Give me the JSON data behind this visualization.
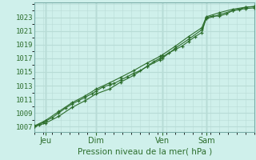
{
  "xlabel": "Pression niveau de la mer( hPa )",
  "bg_color": "#cff0eb",
  "grid_color_major": "#b8dcd6",
  "grid_color_minor": "#daeae7",
  "line_color": "#2d6e2d",
  "yticks": [
    1007,
    1009,
    1011,
    1013,
    1015,
    1017,
    1019,
    1021,
    1023
  ],
  "ylim": [
    1006.2,
    1025.2
  ],
  "xlim": [
    0,
    100
  ],
  "xtick_positions": [
    5,
    28,
    58,
    78
  ],
  "xtick_labels": [
    "Jeu",
    "Dim",
    "Ven",
    "Sam"
  ],
  "vline_positions": [
    5,
    28,
    58,
    78
  ],
  "line1": [
    [
      0,
      1007.0
    ],
    [
      2,
      1007.3
    ],
    [
      4,
      1007.6
    ],
    [
      5,
      1007.8
    ],
    [
      8,
      1008.3
    ],
    [
      11,
      1009.0
    ],
    [
      14,
      1009.7
    ],
    [
      17,
      1010.3
    ],
    [
      20,
      1010.8
    ],
    [
      23,
      1011.3
    ],
    [
      26,
      1011.8
    ],
    [
      28,
      1012.2
    ],
    [
      31,
      1012.8
    ],
    [
      34,
      1013.1
    ],
    [
      36,
      1013.3
    ],
    [
      39,
      1013.8
    ],
    [
      42,
      1014.3
    ],
    [
      45,
      1014.8
    ],
    [
      48,
      1015.2
    ],
    [
      51,
      1015.8
    ],
    [
      54,
      1016.5
    ],
    [
      57,
      1017.0
    ],
    [
      58,
      1017.2
    ],
    [
      61,
      1017.8
    ],
    [
      64,
      1018.3
    ],
    [
      67,
      1018.8
    ],
    [
      70,
      1019.5
    ],
    [
      73,
      1020.2
    ],
    [
      76,
      1020.8
    ],
    [
      78,
      1023.0
    ],
    [
      81,
      1023.2
    ],
    [
      84,
      1023.2
    ],
    [
      87,
      1023.5
    ],
    [
      90,
      1024.0
    ],
    [
      93,
      1024.2
    ],
    [
      96,
      1024.5
    ],
    [
      100,
      1024.6
    ]
  ],
  "line2": [
    [
      0,
      1007.0
    ],
    [
      5,
      1007.5
    ],
    [
      11,
      1008.5
    ],
    [
      17,
      1009.8
    ],
    [
      23,
      1010.8
    ],
    [
      28,
      1011.8
    ],
    [
      34,
      1012.5
    ],
    [
      39,
      1013.5
    ],
    [
      45,
      1014.5
    ],
    [
      51,
      1015.8
    ],
    [
      57,
      1016.8
    ],
    [
      58,
      1017.0
    ],
    [
      64,
      1018.5
    ],
    [
      70,
      1019.8
    ],
    [
      76,
      1021.2
    ],
    [
      78,
      1022.8
    ],
    [
      84,
      1023.4
    ],
    [
      90,
      1024.0
    ],
    [
      96,
      1024.3
    ],
    [
      100,
      1024.4
    ]
  ],
  "line3": [
    [
      0,
      1007.1
    ],
    [
      5,
      1007.9
    ],
    [
      11,
      1009.2
    ],
    [
      17,
      1010.5
    ],
    [
      23,
      1011.5
    ],
    [
      28,
      1012.5
    ],
    [
      34,
      1013.4
    ],
    [
      39,
      1014.2
    ],
    [
      45,
      1015.2
    ],
    [
      51,
      1016.3
    ],
    [
      57,
      1017.3
    ],
    [
      58,
      1017.5
    ],
    [
      64,
      1018.8
    ],
    [
      70,
      1020.2
    ],
    [
      76,
      1021.5
    ],
    [
      78,
      1023.1
    ],
    [
      84,
      1023.7
    ],
    [
      90,
      1024.2
    ],
    [
      96,
      1024.5
    ],
    [
      100,
      1024.6
    ]
  ]
}
